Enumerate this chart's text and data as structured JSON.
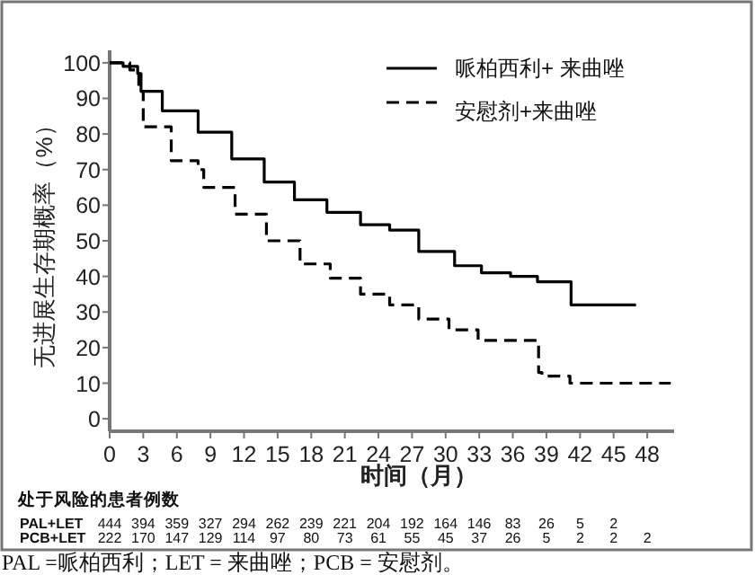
{
  "chart_data": {
    "type": "step",
    "xlabel": "时间（月）",
    "ylabel": "无进展生存期概率（%）",
    "xlim": [
      0,
      50.4
    ],
    "ylim": [
      -3.5,
      103.5
    ],
    "xticks": [
      0,
      3,
      6,
      9,
      12,
      15,
      18,
      21,
      24,
      27,
      30,
      33,
      36,
      39,
      42,
      45,
      48
    ],
    "yticks": [
      0,
      10,
      20,
      30,
      40,
      50,
      60,
      70,
      80,
      90,
      100
    ],
    "legend": "top right",
    "series": [
      {
        "name": "哌柏西利+ 来曲唑",
        "color": "#000000",
        "line_style": "solid",
        "x": [
          0,
          1.2,
          2.5,
          2.8,
          4.7,
          7.9,
          10.9,
          13.8,
          16.5,
          19.4,
          22.4,
          25,
          27.6,
          30.8,
          33.2,
          35.8,
          38.2,
          41.2,
          47
        ],
        "values": [
          100,
          99,
          97,
          92,
          86.5,
          80.5,
          73,
          66.5,
          61.5,
          58,
          54.5,
          53,
          47,
          43,
          41,
          40,
          38.5,
          32,
          32
        ]
      },
      {
        "name": "安慰剂+来曲唑",
        "color": "#000000",
        "line_style": "dashed",
        "x": [
          0,
          1.8,
          2.6,
          3.0,
          5.5,
          7.9,
          8.4,
          11.2,
          14,
          17,
          19.7,
          22.4,
          25,
          27.6,
          30.3,
          32.9,
          38.3,
          38.6,
          41.1,
          50.1
        ],
        "values": [
          100,
          98,
          92,
          82,
          72.5,
          70,
          65,
          57.5,
          50,
          43.5,
          39.5,
          35,
          32,
          28,
          25,
          22,
          13,
          12,
          10,
          10
        ]
      }
    ],
    "annotations": [
      "处于风险的患者例数",
      "PAL+LET 444 394 359 327 294 262 239 221 204 192 164 146 83 26 5 2",
      "PCB+LET 222 170 147 129 114 97 80 73 61 55 45 37 26 5 2 2 2",
      "PAL =哌柏西利；LET = 来曲唑；PCB = 安慰剂。"
    ]
  }
}
